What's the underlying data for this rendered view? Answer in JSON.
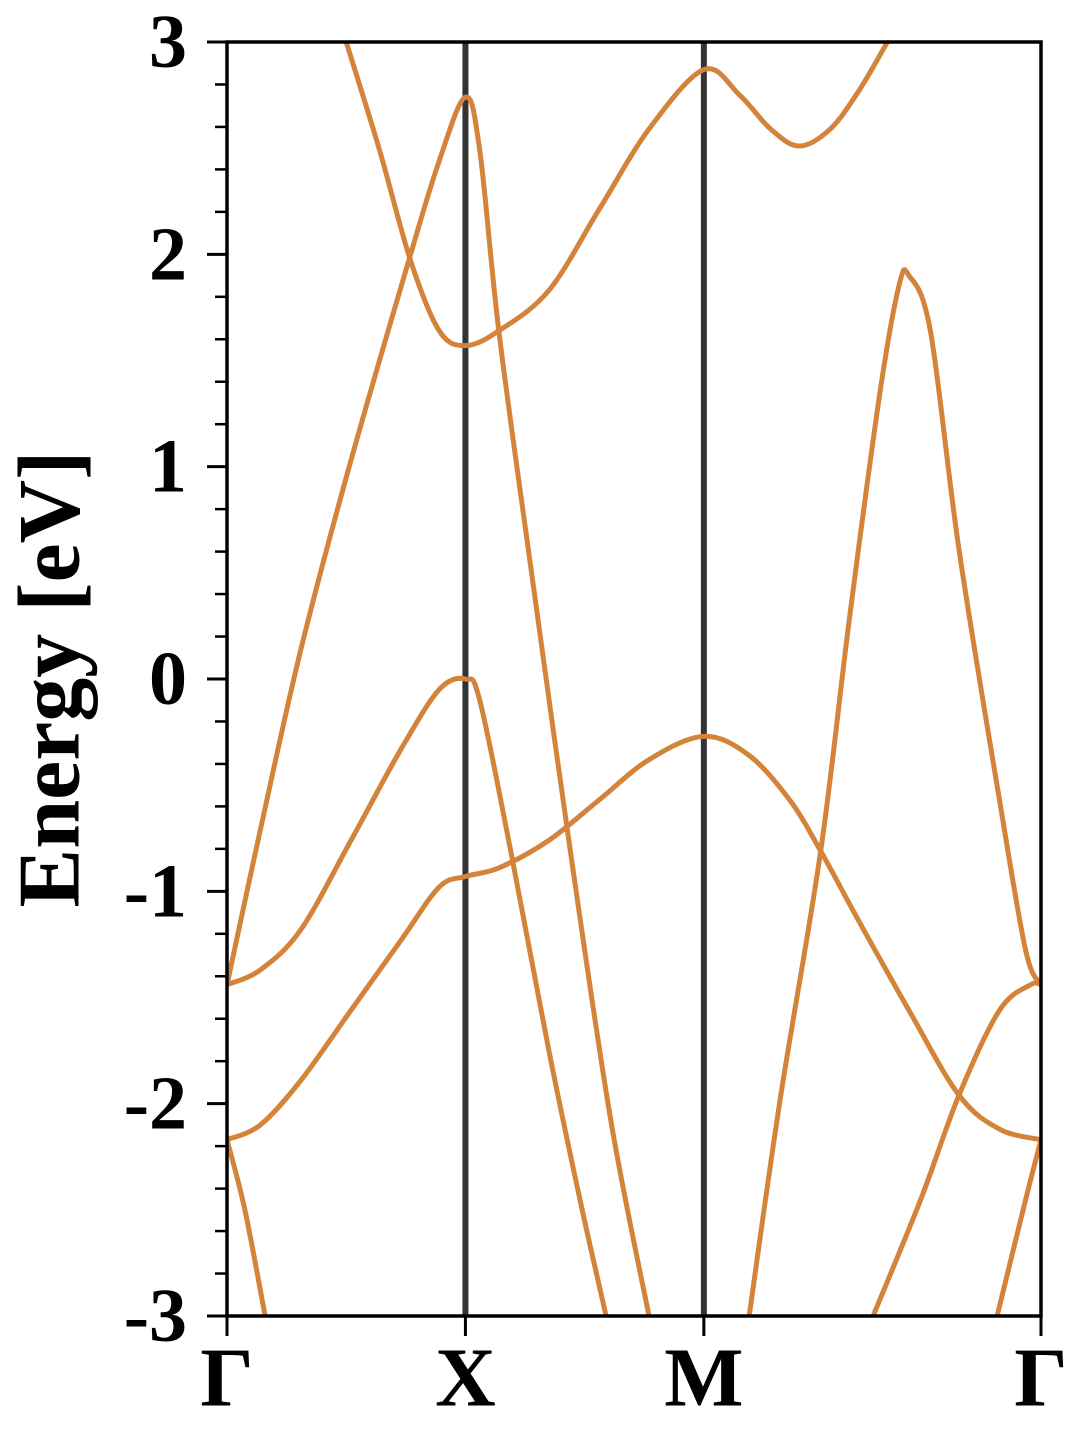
{
  "chart_data": {
    "type": "line",
    "ylabel": "Energy [eV]",
    "xlim": [
      0,
      3.414
    ],
    "ylim": [
      -3,
      3
    ],
    "xticks": [
      {
        "value": 0,
        "label": "Γ"
      },
      {
        "value": 1.0,
        "label": "X"
      },
      {
        "value": 2.0,
        "label": "M"
      },
      {
        "value": 3.414,
        "label": "Γ"
      }
    ],
    "yticks": [
      -3,
      -2,
      -1,
      0,
      1,
      2,
      3
    ],
    "yminorticks": [
      -2.8,
      -2.6,
      -2.4,
      -2.2,
      -1.8,
      -1.6,
      -1.4,
      -1.2,
      -0.8,
      -0.6,
      -0.4,
      -0.2,
      0.2,
      0.4,
      0.6,
      0.8,
      1.2,
      1.4,
      1.6,
      1.8,
      2.2,
      2.4,
      2.6,
      2.8
    ],
    "vlines": true,
    "series": [
      {
        "color": "#d4843a",
        "x": [
          0,
          0.14,
          0.31,
          0.52,
          0.77,
          0.89,
          1.0,
          1.06,
          1.14,
          1.27,
          1.44,
          1.61,
          1.77
        ],
        "values": [
          -1.44,
          -0.71,
          0.14,
          1.03,
          2.0,
          2.44,
          2.74,
          2.49,
          1.64,
          0.56,
          -0.81,
          -2.08,
          -3.0
        ]
      },
      {
        "color": "#d4843a",
        "x": [
          0.5,
          0.64,
          0.77,
          0.89,
          1.0,
          1.14,
          1.35,
          1.56,
          1.77,
          2.0,
          2.15,
          2.28,
          2.4,
          2.53,
          2.65,
          2.77
        ],
        "values": [
          3.0,
          2.49,
          1.97,
          1.64,
          1.57,
          1.64,
          1.83,
          2.21,
          2.59,
          2.87,
          2.75,
          2.59,
          2.51,
          2.59,
          2.77,
          3.0
        ]
      },
      {
        "color": "#d4843a",
        "x": [
          0,
          0.14,
          0.31,
          0.52,
          0.73,
          0.89,
          1.0,
          1.06,
          1.19,
          1.35,
          1.48,
          1.59
        ],
        "values": [
          -1.44,
          -1.37,
          -1.18,
          -0.76,
          -0.33,
          -0.05,
          0,
          -0.1,
          -0.81,
          -1.75,
          -2.45,
          -3.0
        ]
      },
      {
        "color": "#d4843a",
        "x": [
          0,
          0.14,
          0.31,
          0.52,
          0.73,
          0.89,
          1.0,
          1.14,
          1.35,
          1.56,
          1.77,
          2.0,
          2.19,
          2.36,
          2.49,
          2.65,
          2.86,
          3.07,
          3.24,
          3.414
        ],
        "values": [
          -2.17,
          -2.1,
          -1.89,
          -1.56,
          -1.23,
          -0.98,
          -0.93,
          -0.89,
          -0.76,
          -0.57,
          -0.38,
          -0.27,
          -0.36,
          -0.57,
          -0.81,
          -1.14,
          -1.56,
          -1.96,
          -2.12,
          -2.17
        ]
      },
      {
        "color": "#d4843a",
        "x": [
          2.19,
          2.32,
          2.49,
          2.61,
          2.74,
          2.82,
          2.86,
          2.95,
          3.07,
          3.24,
          3.35,
          3.414
        ],
        "values": [
          -3.0,
          -1.98,
          -0.81,
          0.28,
          1.36,
          1.86,
          1.9,
          1.64,
          0.61,
          -0.57,
          -1.28,
          -1.44
        ]
      },
      {
        "color": "#d4843a",
        "x": [
          2.71,
          2.91,
          3.07,
          3.24,
          3.37,
          3.414
        ],
        "values": [
          -3.0,
          -2.45,
          -1.96,
          -1.56,
          -1.44,
          -1.44
        ]
      },
      {
        "color": "#d4843a",
        "x": [
          0,
          0.075,
          0.16
        ],
        "values": [
          -2.17,
          -2.5,
          -3.0
        ]
      },
      {
        "color": "#d4843a",
        "x": [
          3.23,
          3.35,
          3.414
        ],
        "values": [
          -3.0,
          -2.45,
          -2.17
        ]
      }
    ]
  }
}
